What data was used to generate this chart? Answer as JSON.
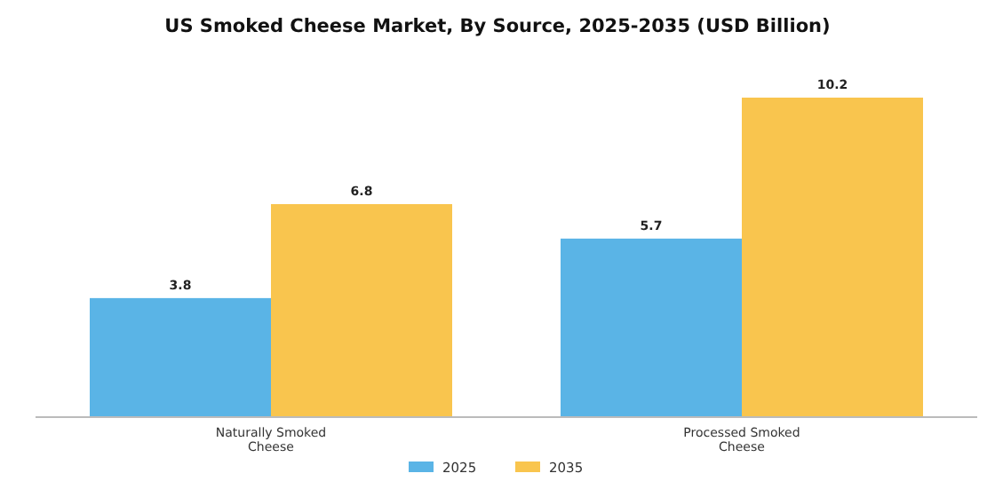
{
  "chart_data": {
    "type": "bar",
    "title": "US Smoked Cheese Market, By Source, 2025-2035 (USD Billion)",
    "categories": [
      "Naturally Smoked Cheese",
      "Processed Smoked Cheese"
    ],
    "series": [
      {
        "name": "2025",
        "color": "#5ab4e6",
        "values": [
          3.8,
          5.7
        ]
      },
      {
        "name": "2035",
        "color": "#f9c54e",
        "values": [
          6.8,
          10.2
        ]
      }
    ],
    "data_labels": true,
    "legend": "bottom",
    "grid": false
  }
}
